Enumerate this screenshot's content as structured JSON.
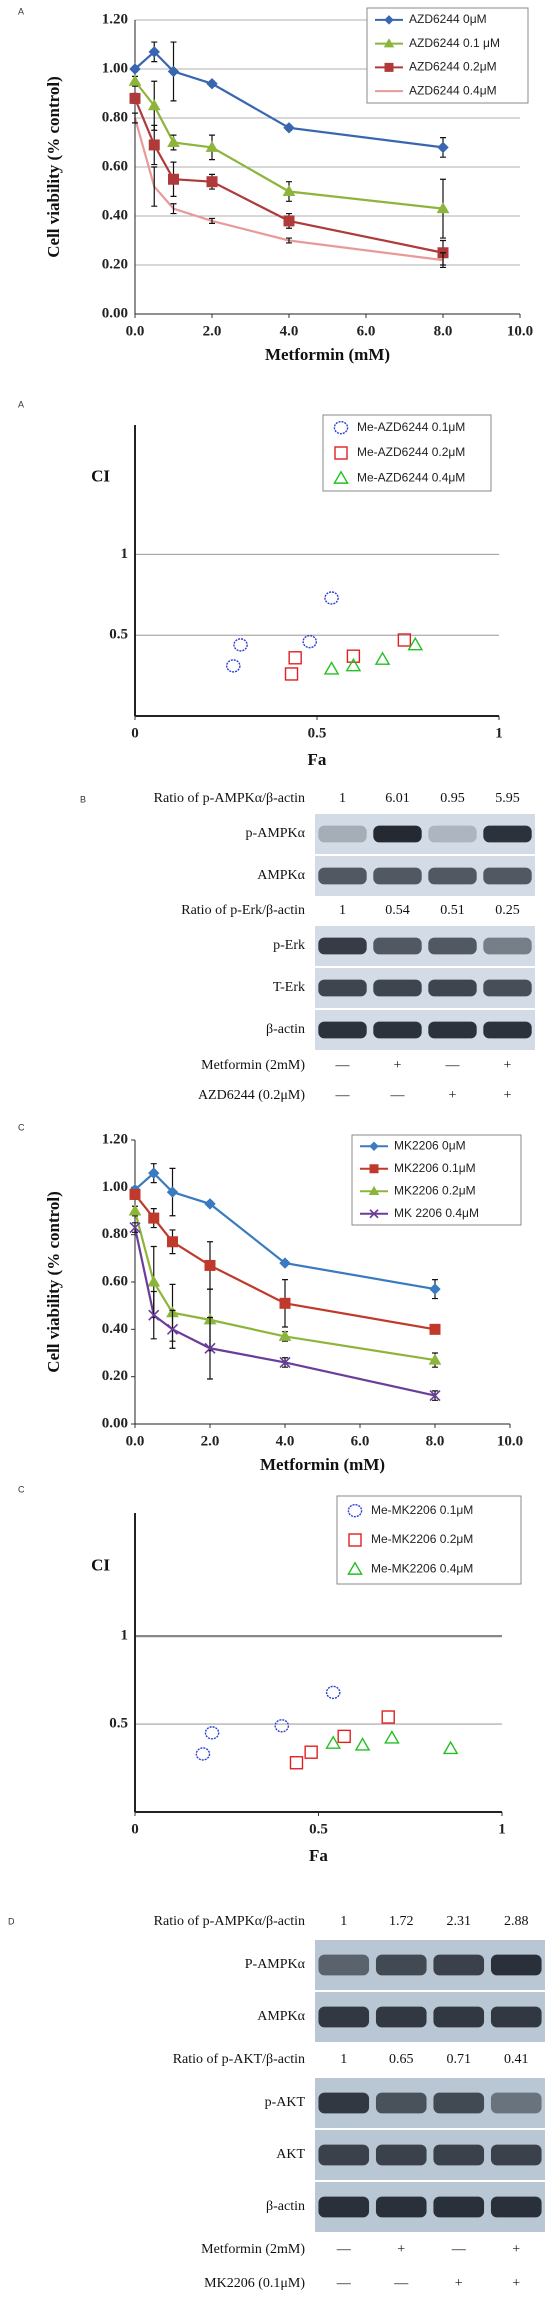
{
  "panel_labels": [
    "A",
    "A",
    "B",
    "C",
    "C",
    "D"
  ],
  "chart_data": [
    {
      "type": "line",
      "x_label": "Metformin  (mM)",
      "y_label": "Cell viability (% control)",
      "x": [
        0,
        0.5,
        1,
        2,
        4,
        8
      ],
      "series": [
        {
          "name": "AZD6244 0μM",
          "color": "#3a66b0",
          "marker": "diamond",
          "values": [
            1.0,
            1.07,
            0.99,
            0.94,
            0.76,
            0.68
          ],
          "errors": [
            0.01,
            0.04,
            0.12,
            0.01,
            0.01,
            0.04
          ]
        },
        {
          "name": "AZD6244 0.1 μM",
          "color": "#8db53c",
          "marker": "triangle",
          "values": [
            0.95,
            0.85,
            0.7,
            0.68,
            0.5,
            0.43
          ],
          "errors": [
            0.02,
            0.1,
            0.03,
            0.05,
            0.04,
            0.12
          ]
        },
        {
          "name": "AZD6244 0.2μM",
          "color": "#b03a3a",
          "marker": "square",
          "values": [
            0.88,
            0.69,
            0.55,
            0.54,
            0.38,
            0.25
          ],
          "errors": [
            0.02,
            0.08,
            0.07,
            0.03,
            0.03,
            0.05
          ]
        },
        {
          "name": "AZD6244 0.4μM",
          "color": "#e89a9a",
          "marker": "none",
          "values": [
            0.8,
            0.52,
            0.43,
            0.38,
            0.3,
            0.22
          ],
          "errors": [
            0.02,
            0.08,
            0.02,
            0.01,
            0.01,
            0.03
          ]
        }
      ],
      "xlim": [
        0,
        10
      ],
      "xticks": [
        {
          "value": 0,
          "label": "0.0"
        },
        {
          "value": 2,
          "label": "2.0"
        },
        {
          "value": 4,
          "label": "4.0"
        },
        {
          "value": 6,
          "label": "6.0"
        },
        {
          "value": 8,
          "label": "8.0"
        },
        {
          "value": 10,
          "label": "10.0"
        }
      ],
      "ylim": [
        0,
        1.2
      ],
      "yticks": [
        {
          "value": 0,
          "label": "0.00"
        },
        {
          "value": 0.2,
          "label": "0.20"
        },
        {
          "value": 0.4,
          "label": "0.40"
        },
        {
          "value": 0.6,
          "label": "0.60"
        },
        {
          "value": 0.8,
          "label": "0.80"
        },
        {
          "value": 1.0,
          "label": "1.00"
        },
        {
          "value": 1.2,
          "label": "1.20"
        }
      ],
      "grid": true,
      "legend": "upper right"
    },
    {
      "type": "scatter",
      "x_label": "Fa",
      "y_label": "CI",
      "series": [
        {
          "name": "Me-AZD6244 0.1μM",
          "color": "#2b3fd6",
          "marker": "circle",
          "x": [
            0.27,
            0.29,
            0.48,
            0.54
          ],
          "values": [
            0.31,
            0.44,
            0.46,
            0.73
          ]
        },
        {
          "name": "Me-AZD6244 0.2μM",
          "color": "#e02020",
          "marker": "square",
          "x": [
            0.43,
            0.44,
            0.6,
            0.74
          ],
          "values": [
            0.26,
            0.36,
            0.37,
            0.47
          ]
        },
        {
          "name": "Me-AZD6244 0.4μM",
          "color": "#22c022",
          "marker": "triangle",
          "x": [
            0.54,
            0.6,
            0.68,
            0.77
          ],
          "values": [
            0.29,
            0.31,
            0.35,
            0.44
          ]
        }
      ],
      "xlim": [
        0,
        1
      ],
      "xticks": [
        0,
        0.5,
        1
      ],
      "ylim": [
        0,
        1.8
      ],
      "yticks": [
        0.5,
        1
      ],
      "grid": true,
      "legend": "upper right"
    },
    {
      "type": "line",
      "x_label": "Metformin  (mM)",
      "y_label": "Cell viability (% control)",
      "x": [
        0,
        0.5,
        1,
        2,
        4,
        8
      ],
      "series": [
        {
          "name": "MK2206 0μM",
          "color": "#3a7ac0",
          "marker": "diamond",
          "values": [
            0.99,
            1.06,
            0.98,
            0.93,
            0.68,
            0.57
          ],
          "errors": [
            0.01,
            0.04,
            0.1,
            0.01,
            0.01,
            0.04
          ]
        },
        {
          "name": "MK2206 0.1μM",
          "color": "#c0392b",
          "marker": "square",
          "values": [
            0.97,
            0.87,
            0.77,
            0.67,
            0.51,
            0.4
          ],
          "errors": [
            0.02,
            0.04,
            0.05,
            0.1,
            0.1,
            0.01
          ]
        },
        {
          "name": "MK2206 0.2μM",
          "color": "#8db53c",
          "marker": "triangle",
          "values": [
            0.9,
            0.6,
            0.47,
            0.44,
            0.37,
            0.27
          ],
          "errors": [
            0.02,
            0.15,
            0.12,
            0.13,
            0.02,
            0.03
          ]
        },
        {
          "name": "MK 2206 0.4μM",
          "color": "#6a3d9a",
          "marker": "cross",
          "values": [
            0.83,
            0.46,
            0.4,
            0.32,
            0.26,
            0.12
          ],
          "errors": [
            0.02,
            0.1,
            0.08,
            0.13,
            0.02,
            0.02
          ]
        }
      ],
      "xlim": [
        0,
        10
      ],
      "xticks": [
        {
          "value": 0,
          "label": "0.0"
        },
        {
          "value": 2,
          "label": "2.0"
        },
        {
          "value": 4,
          "label": "4.0"
        },
        {
          "value": 6,
          "label": "6.0"
        },
        {
          "value": 8,
          "label": "8.0"
        },
        {
          "value": 10,
          "label": "10.0"
        }
      ],
      "ylim": [
        0,
        1.2
      ],
      "yticks": [
        {
          "value": 0,
          "label": "0.00"
        },
        {
          "value": 0.2,
          "label": "0.20"
        },
        {
          "value": 0.4,
          "label": "0.40"
        },
        {
          "value": 0.6,
          "label": "0.60"
        },
        {
          "value": 0.8,
          "label": "0.80"
        },
        {
          "value": 1.0,
          "label": "1.00"
        },
        {
          "value": 1.2,
          "label": "1.20"
        }
      ],
      "grid": false,
      "legend": "upper right"
    },
    {
      "type": "scatter",
      "x_label": "Fa",
      "y_label": "CI",
      "series": [
        {
          "name": "Me-MK2206 0.1μM",
          "color": "#2b3fd6",
          "marker": "circle",
          "x": [
            0.185,
            0.21,
            0.4,
            0.54
          ],
          "values": [
            0.33,
            0.45,
            0.49,
            0.68
          ]
        },
        {
          "name": "Me-MK2206 0.2μM",
          "color": "#e02020",
          "marker": "square",
          "x": [
            0.44,
            0.48,
            0.57,
            0.69
          ],
          "values": [
            0.28,
            0.34,
            0.43,
            0.54
          ]
        },
        {
          "name": "Me-MK2206 0.4μM",
          "color": "#22c022",
          "marker": "triangle",
          "x": [
            0.54,
            0.62,
            0.7,
            0.86
          ],
          "values": [
            0.39,
            0.38,
            0.42,
            0.36
          ]
        }
      ],
      "xlim": [
        0,
        1
      ],
      "xticks": [
        0,
        0.5,
        1
      ],
      "ylim": [
        0,
        1.7
      ],
      "yticks": [
        0.5,
        1
      ],
      "grid": true,
      "legend": "upper right"
    }
  ],
  "blots": [
    {
      "sections": [
        {
          "ratio": {
            "label": "Ratio of p-AMPKα/β-actin",
            "values": [
              1,
              6.01,
              0.95,
              5.95
            ]
          },
          "bands": [
            "p-AMPKα",
            "AMPKα"
          ]
        },
        {
          "ratio": {
            "label": "Ratio of p-Erk/β-actin",
            "values": [
              1,
              0.54,
              0.51,
              0.25
            ]
          },
          "bands": [
            "p-Erk",
            "T-Erk",
            "β-actin"
          ]
        }
      ],
      "treatments": [
        {
          "label": "Metformin (2mM)",
          "values": [
            "—",
            "+",
            "—",
            "+"
          ]
        },
        {
          "label": "AZD6244 (0.2μM)",
          "values": [
            "—",
            "—",
            "+",
            "+"
          ]
        }
      ]
    },
    {
      "sections": [
        {
          "ratio": {
            "label": "Ratio of p-AMPKα/β-actin",
            "values": [
              1,
              1.72,
              2.31,
              2.88
            ]
          },
          "bands": [
            "P-AMPKα",
            "AMPKα"
          ]
        },
        {
          "ratio": {
            "label": "Ratio of p-AKT/β-actin",
            "values": [
              1,
              0.65,
              0.71,
              0.41
            ]
          },
          "bands": [
            "p-AKT",
            "AKT",
            "β-actin"
          ]
        }
      ],
      "treatments": [
        {
          "label": "Metformin (2mM)",
          "values": [
            "—",
            "+",
            "—",
            "+"
          ]
        },
        {
          "label": "MK2206 (0.1μM)",
          "values": [
            "—",
            "—",
            "+",
            "+"
          ]
        }
      ]
    }
  ]
}
